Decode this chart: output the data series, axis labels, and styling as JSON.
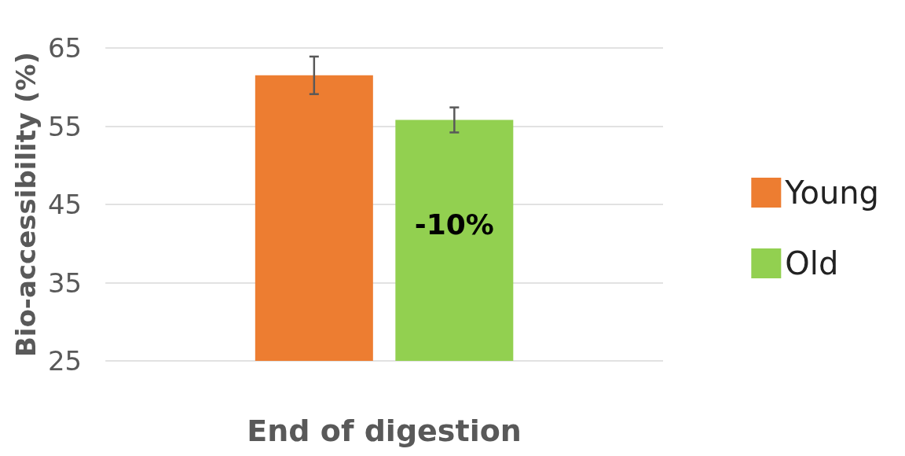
{
  "chart_data": {
    "type": "bar",
    "ylabel": "Bio-accessibility (%)",
    "xlabel": "End of digestion",
    "categories": [
      null
    ],
    "series": [
      {
        "name": "Young",
        "color": "#ed7d31",
        "values": [
          61.5
        ],
        "errors": [
          2.4
        ]
      },
      {
        "name": "Old",
        "color": "#92d050",
        "values": [
          55.8
        ],
        "errors": [
          1.6
        ]
      }
    ],
    "ylim": [
      25,
      65
    ],
    "yticks": [
      25,
      35,
      45,
      55,
      65
    ],
    "grid": "y",
    "legend": "right",
    "annotations": [
      "-10%"
    ]
  }
}
